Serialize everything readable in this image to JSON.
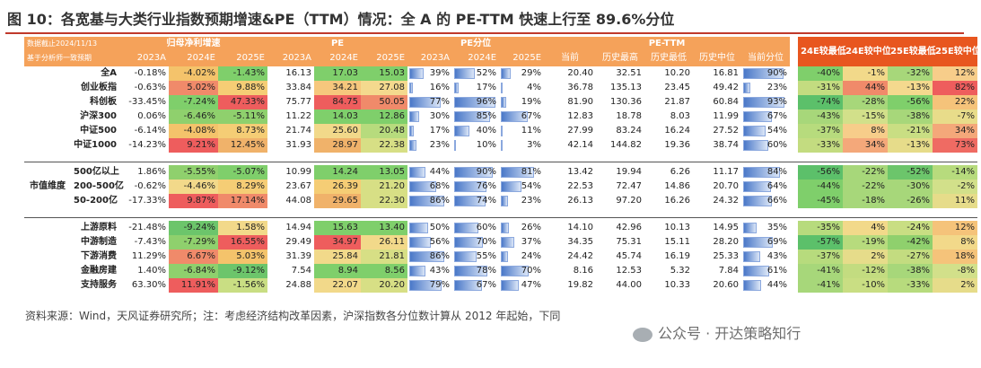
{
  "title": "图 10：各宽基与大类行业指数预期增速&PE（TTM）情况：全 A 的 PE-TTM 快速上行至 89.6%分位",
  "header": {
    "date_note": "数据截止2024/11/13",
    "basis_note": "基于分析师一致预期",
    "groups": {
      "profit": "归母净利增速",
      "pe": "PE",
      "pe_pct": "PE分位",
      "pe_ttm": "PE-TTM"
    },
    "years": [
      "2023A",
      "2024E",
      "2025E"
    ],
    "ttm_cols": [
      "当前",
      "历史最高",
      "历史最低",
      "历史中位",
      "当前分位"
    ],
    "wide_cols": [
      "24E较最低",
      "24E较中位",
      "25E较最低",
      "25E较中位"
    ]
  },
  "category_label": "市值维度",
  "rows": [
    {
      "name": "全A",
      "p23": "-0.18%",
      "p24": "-4.02%",
      "p25": "-1.43%",
      "pe23": "16.13",
      "pe24": "17.03",
      "pe25": "15.03",
      "q23": "39%",
      "q24": "52%",
      "q25": "29%",
      "cur": "20.40",
      "hi": "32.51",
      "lo": "10.20",
      "med": "16.81",
      "pct": "90%",
      "w1": "-40%",
      "w2": "-1%",
      "w3": "-32%",
      "w4": "12%",
      "c": {
        "p24": "#f4c36b",
        "p25": "#7fcf6b",
        "pe24": "#7fcf6b",
        "pe25": "#7fcf6b",
        "w1": "#7fcf6b",
        "w2": "#f2d98a",
        "w3": "#a7d77a",
        "w4": "#f7cd8a"
      }
    },
    {
      "name": "创业板指",
      "p23": "-0.63%",
      "p24": "5.02%",
      "p25": "9.88%",
      "pe23": "33.84",
      "pe24": "34.21",
      "pe25": "27.08",
      "q23": "16%",
      "q24": "17%",
      "q25": "4%",
      "cur": "36.78",
      "hi": "135.13",
      "lo": "23.45",
      "med": "49.42",
      "pct": "23%",
      "w1": "-31%",
      "w2": "44%",
      "w3": "-13%",
      "w4": "82%",
      "c": {
        "p24": "#f08a6a",
        "p25": "#f5cd75",
        "pe24": "#f6c77d",
        "pe25": "#f4d98e",
        "w1": "#c3dc80",
        "w2": "#f08a6a",
        "w3": "#f4d98e",
        "w4": "#ee5d5d"
      }
    },
    {
      "name": "科创板",
      "p23": "-33.45%",
      "p24": "-7.24%",
      "p25": "47.33%",
      "pe23": "75.77",
      "pe24": "84.75",
      "pe25": "50.05",
      "q23": "77%",
      "q24": "96%",
      "q25": "19%",
      "cur": "81.90",
      "hi": "130.36",
      "lo": "21.87",
      "med": "60.84",
      "pct": "93%",
      "w1": "-74%",
      "w2": "-28%",
      "w3": "-56%",
      "w4": "22%",
      "c": {
        "p24": "#7fcf6b",
        "p25": "#ee5d5d",
        "pe24": "#ee5d5d",
        "pe25": "#f08a6a",
        "w1": "#5cc06a",
        "w2": "#a7d77a",
        "w3": "#7fcf6b",
        "w4": "#f5c37a"
      }
    },
    {
      "name": "沪深300",
      "p23": "0.06%",
      "p24": "-6.46%",
      "p25": "-5.11%",
      "pe23": "11.22",
      "pe24": "14.03",
      "pe25": "12.86",
      "q23": "30%",
      "q24": "85%",
      "q25": "67%",
      "cur": "12.83",
      "hi": "18.78",
      "lo": "8.03",
      "med": "11.99",
      "pct": "67%",
      "w1": "-43%",
      "w2": "-15%",
      "w3": "-38%",
      "w4": "-7%",
      "c": {
        "p24": "#8fd06d",
        "p25": "#8fd06d",
        "pe24": "#7fcf6b",
        "pe25": "#7fcf6b",
        "w1": "#a7d77a",
        "w2": "#d2e08a",
        "w3": "#a7d77a",
        "w4": "#e8dc8a"
      }
    },
    {
      "name": "中证500",
      "p23": "-6.14%",
      "p24": "-4.08%",
      "p25": "8.73%",
      "pe23": "21.74",
      "pe24": "25.60",
      "pe25": "20.48",
      "q23": "17%",
      "q24": "40%",
      "q25": "11%",
      "cur": "27.99",
      "hi": "83.24",
      "lo": "16.24",
      "med": "27.52",
      "pct": "54%",
      "w1": "-37%",
      "w2": "8%",
      "w3": "-21%",
      "w4": "34%",
      "c": {
        "p24": "#f4c36b",
        "p25": "#f5cd75",
        "pe24": "#f2d98a",
        "pe25": "#b7db7d",
        "w1": "#b7db7d",
        "w2": "#f7cd8a",
        "w3": "#c9de83",
        "w4": "#f4a87a"
      }
    },
    {
      "name": "中证1000",
      "p23": "-14.23%",
      "p24": "9.21%",
      "p25": "12.45%",
      "pe23": "31.93",
      "pe24": "28.97",
      "pe25": "22.38",
      "q23": "23%",
      "q24": "10%",
      "q25": "3%",
      "cur": "42.14",
      "hi": "144.82",
      "lo": "19.36",
      "med": "38.74",
      "pct": "60%",
      "w1": "-33%",
      "w2": "34%",
      "w3": "-13%",
      "w4": "73%",
      "c": {
        "p24": "#ee5d5d",
        "p25": "#f0b26a",
        "pe24": "#f0b26a",
        "pe25": "#d7df85",
        "w1": "#c3dc80",
        "w2": "#f4a87a",
        "w3": "#e6dc8a",
        "w4": "#ef6b63"
      }
    },
    {
      "name": "500亿以上",
      "p23": "1.86%",
      "p24": "-5.55%",
      "p25": "-5.07%",
      "pe23": "10.99",
      "pe24": "14.24",
      "pe25": "13.05",
      "q23": "44%",
      "q24": "90%",
      "q25": "81%",
      "cur": "13.42",
      "hi": "19.94",
      "lo": "6.26",
      "med": "11.17",
      "pct": "84%",
      "w1": "-56%",
      "w2": "-22%",
      "w3": "-52%",
      "w4": "-14%",
      "c": {
        "p24": "#8fd06d",
        "p25": "#7fcf6b",
        "pe24": "#7fcf6b",
        "pe25": "#7fcf6b",
        "w1": "#5cc06a",
        "w2": "#a7d77a",
        "w3": "#6cc56b",
        "w4": "#b7db7d"
      }
    },
    {
      "name": "200-500亿",
      "p23": "-0.62%",
      "p24": "-4.46%",
      "p25": "8.29%",
      "pe23": "23.67",
      "pe24": "26.39",
      "pe25": "21.20",
      "q23": "68%",
      "q24": "76%",
      "q25": "54%",
      "cur": "22.53",
      "hi": "72.47",
      "lo": "14.86",
      "med": "20.70",
      "pct": "64%",
      "w1": "-44%",
      "w2": "-22%",
      "w3": "-30%",
      "w4": "-2%",
      "c": {
        "p24": "#f2d98a",
        "p25": "#f5cd75",
        "pe24": "#f5cd75",
        "pe25": "#d7df85",
        "w1": "#7fcf6b",
        "w2": "#a7d77a",
        "w3": "#a7d77a",
        "w4": "#d2e08a"
      }
    },
    {
      "name": "50-200亿",
      "p23": "-17.33%",
      "p24": "9.87%",
      "p25": "17.14%",
      "pe23": "44.08",
      "pe24": "29.65",
      "pe25": "22.30",
      "q23": "86%",
      "q24": "74%",
      "q25": "23%",
      "cur": "26.13",
      "hi": "97.20",
      "lo": "16.26",
      "med": "24.32",
      "pct": "66%",
      "w1": "-45%",
      "w2": "-18%",
      "w3": "-26%",
      "w4": "11%",
      "c": {
        "p24": "#ee5d5d",
        "p25": "#f08a6a",
        "pe24": "#f0b26a",
        "pe25": "#d7df85",
        "w1": "#7fcf6b",
        "w2": "#a7d77a",
        "w3": "#a7d77a",
        "w4": "#e6dc8a"
      }
    },
    {
      "name": "上游原料",
      "p23": "-21.48%",
      "p24": "-9.24%",
      "p25": "1.58%",
      "pe23": "14.94",
      "pe24": "15.63",
      "pe25": "13.40",
      "q23": "50%",
      "q24": "60%",
      "q25": "26%",
      "cur": "14.10",
      "hi": "42.96",
      "lo": "10.13",
      "med": "14.95",
      "pct": "35%",
      "w1": "-35%",
      "w2": "4%",
      "w3": "-24%",
      "w4": "12%",
      "c": {
        "p24": "#6cc56b",
        "p25": "#f2d98a",
        "pe24": "#7fcf6b",
        "pe25": "#7fcf6b",
        "w1": "#b7db7d",
        "w2": "#f2d98a",
        "w3": "#c9de83",
        "w4": "#f5c37a"
      }
    },
    {
      "name": "中游制造",
      "p23": "-7.43%",
      "p24": "-7.29%",
      "p25": "16.55%",
      "pe23": "29.49",
      "pe24": "34.97",
      "pe25": "26.11",
      "q23": "56%",
      "q24": "70%",
      "q25": "37%",
      "cur": "34.35",
      "hi": "75.31",
      "lo": "15.11",
      "med": "28.20",
      "pct": "69%",
      "w1": "-57%",
      "w2": "-19%",
      "w3": "-42%",
      "w4": "8%",
      "c": {
        "p24": "#8fd06d",
        "p25": "#ee5d5d",
        "pe24": "#ee5d5d",
        "pe25": "#f2d98a",
        "w1": "#5cc06a",
        "w2": "#b7db7d",
        "w3": "#8fd06d",
        "w4": "#f2d98a"
      }
    },
    {
      "name": "下游消费",
      "p23": "11.29%",
      "p24": "6.67%",
      "p25": "5.03%",
      "pe23": "31.39",
      "pe24": "25.84",
      "pe25": "21.81",
      "q23": "86%",
      "q24": "55%",
      "q25": "24%",
      "cur": "24.42",
      "hi": "45.74",
      "lo": "16.19",
      "med": "25.33",
      "pct": "43%",
      "w1": "-37%",
      "w2": "2%",
      "w3": "-27%",
      "w4": "18%",
      "c": {
        "p24": "#f08a6a",
        "p25": "#f4c36b",
        "pe24": "#f2d98a",
        "pe25": "#d7df85",
        "w1": "#b7db7d",
        "w2": "#e6dc8a",
        "w3": "#c3dc80",
        "w4": "#f5c37a"
      }
    },
    {
      "name": "金融房建",
      "p23": "1.40%",
      "p24": "-6.84%",
      "p25": "-9.12%",
      "pe23": "7.54",
      "pe24": "8.94",
      "pe25": "8.56",
      "q23": "43%",
      "q24": "78%",
      "q25": "70%",
      "cur": "8.16",
      "hi": "12.53",
      "lo": "5.32",
      "med": "7.84",
      "pct": "61%",
      "w1": "-41%",
      "w2": "-12%",
      "w3": "-38%",
      "w4": "-8%",
      "c": {
        "p24": "#8fd06d",
        "p25": "#6cc56b",
        "pe24": "#7fcf6b",
        "pe25": "#7fcf6b",
        "w1": "#a7d77a",
        "w2": "#c3dc80",
        "w3": "#a7d77a",
        "w4": "#d2e08a"
      }
    },
    {
      "name": "支持服务",
      "p23": "63.30%",
      "p24": "11.91%",
      "p25": "-1.56%",
      "pe23": "24.88",
      "pe24": "22.07",
      "pe25": "20.20",
      "q23": "79%",
      "q24": "67%",
      "q25": "47%",
      "cur": "19.82",
      "hi": "44.00",
      "lo": "10.33",
      "med": "20.60",
      "pct": "44%",
      "w1": "-41%",
      "w2": "-10%",
      "w3": "-33%",
      "w4": "2%",
      "c": {
        "p24": "#ee5d5d",
        "p25": "#c9de83",
        "pe24": "#f2d98a",
        "pe25": "#d7df85",
        "w1": "#a7d77a",
        "w2": "#c9de83",
        "w3": "#b7db7d",
        "w4": "#e6dc8a"
      }
    }
  ],
  "source": "资料来源：Wind，天风证券研究所；注：考虑经济结构改革因素，沪深指数各分位数计算从 2012 年起始，下同",
  "watermark": "公众号 · 开达策略知行"
}
